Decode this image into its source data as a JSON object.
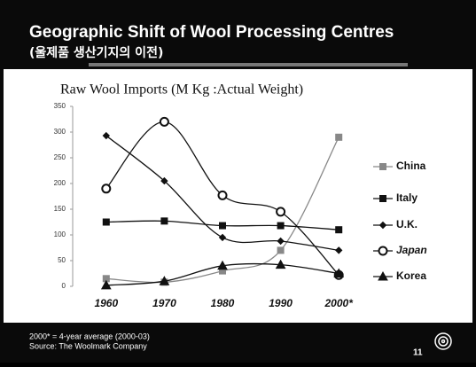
{
  "header": {
    "title": "Geographic Shift of Wool Processing Centres",
    "subtitle": "(울제품 생산기지의 이전)"
  },
  "chart_data": {
    "type": "line",
    "title": "Raw Wool Imports (M Kg :Actual Weight)",
    "categories": [
      "1960",
      "1970",
      "1980",
      "1990",
      "2000*"
    ],
    "ylim": [
      0,
      350
    ],
    "yticks": [
      0,
      50,
      100,
      150,
      200,
      250,
      300,
      350
    ],
    "legend": "right",
    "series": [
      {
        "name": "China",
        "color": "#888888",
        "marker": "square",
        "values": [
          15,
          8,
          30,
          70,
          290
        ]
      },
      {
        "name": "Italy",
        "color": "#111111",
        "marker": "square",
        "values": [
          125,
          127,
          118,
          118,
          110
        ]
      },
      {
        "name": "U.K.",
        "color": "#111111",
        "marker": "diamond",
        "values": [
          293,
          205,
          95,
          88,
          70
        ]
      },
      {
        "name": "Japan",
        "color": "#111111",
        "marker": "circle",
        "values": [
          190,
          320,
          177,
          145,
          22
        ]
      },
      {
        "name": "Korea",
        "color": "#111111",
        "marker": "triangle",
        "values": [
          2,
          10,
          40,
          42,
          25
        ]
      }
    ]
  },
  "footer": {
    "note": "2000* = 4-year average (2000-03)",
    "source": "Source: The Woolmark Company",
    "page": "11"
  }
}
